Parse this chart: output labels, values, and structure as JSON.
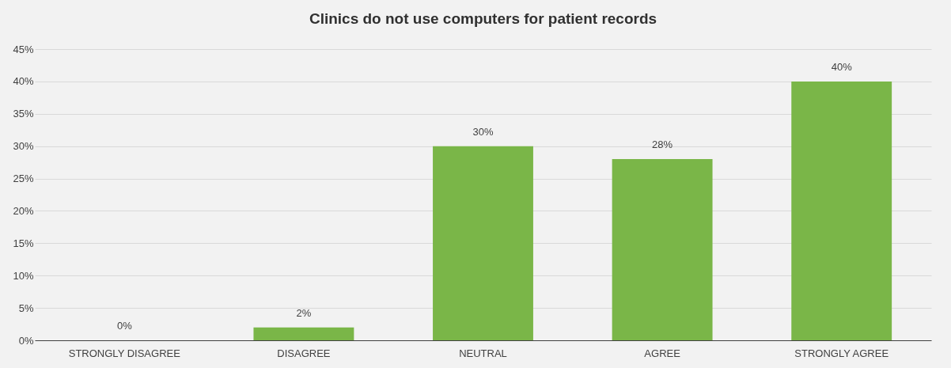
{
  "chart_data": {
    "type": "bar",
    "title": "Clinics do not use computers for patient records",
    "categories": [
      "STRONGLY DISAGREE",
      "DISAGREE",
      "NEUTRAL",
      "AGREE",
      "STRONGLY AGREE"
    ],
    "values": [
      0,
      2,
      30,
      28,
      40
    ],
    "value_labels": [
      "0%",
      "2%",
      "30%",
      "28%",
      "40%"
    ],
    "color": "#7ab648",
    "ylim": [
      0,
      45
    ],
    "yticks": [
      {
        "value": 0,
        "label": "0%"
      },
      {
        "value": 5,
        "label": "5%"
      },
      {
        "value": 10,
        "label": "10%"
      },
      {
        "value": 15,
        "label": "15%"
      },
      {
        "value": 20,
        "label": "20%"
      },
      {
        "value": 25,
        "label": "25%"
      },
      {
        "value": 30,
        "label": "30%"
      },
      {
        "value": 35,
        "label": "35%"
      },
      {
        "value": 40,
        "label": "40%"
      },
      {
        "value": 45,
        "label": "45%"
      }
    ],
    "grid": "y"
  }
}
